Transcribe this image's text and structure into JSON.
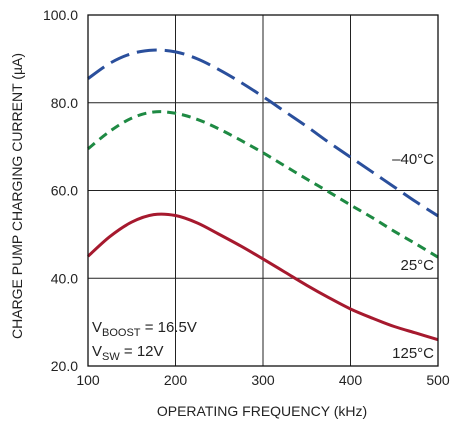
{
  "chart_data": {
    "type": "line",
    "xlabel": "OPERATING FREQUENCY (kHz)",
    "ylabel": "CHARGE PUMP CHARGING CURRENT (µA)",
    "xlim": [
      100,
      500
    ],
    "ylim": [
      20,
      100
    ],
    "x_ticks": [
      "100",
      "200",
      "300",
      "400",
      "500"
    ],
    "y_ticks": [
      "20.0",
      "40.0",
      "60.0",
      "80.0",
      "100.0"
    ],
    "grid": true,
    "conditions": [
      {
        "main": "V",
        "sub": "BOOST",
        "rest": " = 16.5V"
      },
      {
        "main": "V",
        "sub": "SW",
        "rest": " = 12V"
      }
    ],
    "series": [
      {
        "name": "–40°C",
        "color": "#2a4f9c",
        "dash": "long-dash",
        "x": [
          100,
          125,
          150,
          175,
          200,
          225,
          250,
          275,
          300,
          325,
          350,
          375,
          400,
          425,
          450,
          475,
          500
        ],
        "y": [
          85.5,
          89.0,
          91.2,
          92.0,
          91.6,
          90.0,
          87.5,
          84.6,
          81.4,
          78.0,
          74.6,
          71.0,
          67.6,
          64.2,
          60.8,
          57.4,
          54.2
        ]
      },
      {
        "name": "25°C",
        "color": "#1e8a43",
        "dash": "short-dash",
        "x": [
          100,
          125,
          150,
          175,
          200,
          225,
          250,
          275,
          300,
          325,
          350,
          375,
          400,
          425,
          450,
          475,
          500
        ],
        "y": [
          69.5,
          73.5,
          76.5,
          77.9,
          77.6,
          76.2,
          74.0,
          71.4,
          68.6,
          65.6,
          62.6,
          59.7,
          56.7,
          53.8,
          50.7,
          47.8,
          44.8
        ]
      },
      {
        "name": "125°C",
        "color": "#a6192e",
        "dash": "solid",
        "x": [
          100,
          125,
          150,
          175,
          200,
          225,
          250,
          275,
          300,
          325,
          350,
          375,
          400,
          425,
          450,
          475,
          500
        ],
        "y": [
          45.0,
          49.5,
          52.8,
          54.5,
          54.3,
          52.6,
          50.0,
          47.3,
          44.4,
          41.4,
          38.4,
          35.6,
          33.0,
          30.9,
          29.0,
          27.5,
          26.0
        ]
      }
    ]
  }
}
